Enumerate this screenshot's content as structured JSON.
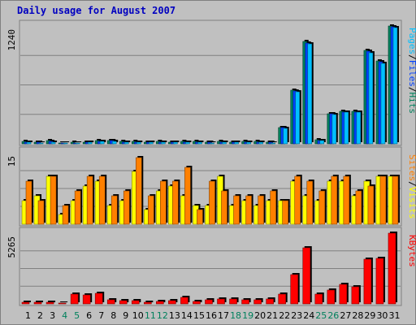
{
  "chart_data": {
    "type": "bar",
    "title": "Daily usage for August 2007",
    "categories": [
      "1",
      "2",
      "3",
      "4",
      "5",
      "6",
      "7",
      "8",
      "9",
      "10",
      "11",
      "12",
      "13",
      "14",
      "15",
      "16",
      "17",
      "18",
      "19",
      "20",
      "21",
      "22",
      "23",
      "24",
      "25",
      "26",
      "27",
      "28",
      "29",
      "30",
      "31"
    ],
    "weekend_days": [
      "4",
      "5",
      "11",
      "12",
      "18",
      "19",
      "25",
      "26"
    ],
    "colors": {
      "title": "#0000c0",
      "hits": "#00805c",
      "files": "#0040ff",
      "pages": "#00c0ff",
      "visits": "#ffff00",
      "sites": "#ff8000",
      "kbytes": "#ff0000",
      "weekday_label": "#000000",
      "weekend_label": "#00805c",
      "background": "#c0c0c0"
    },
    "panels": [
      {
        "id": "hits",
        "ymax": 1240,
        "ymax_label": "1240",
        "side_label": [
          "Pages",
          "Files",
          "Hits"
        ],
        "series": [
          {
            "name": "Hits",
            "values": [
              22,
              18,
              30,
              12,
              15,
              20,
              32,
              38,
              26,
              24,
              20,
              24,
              20,
              22,
              24,
              18,
              22,
              20,
              22,
              22,
              18,
              175,
              565,
              1075,
              45,
              320,
              340,
              340,
              985,
              870,
              1240
            ]
          },
          {
            "name": "Files",
            "values": [
              18,
              14,
              24,
              10,
              12,
              16,
              26,
              30,
              20,
              20,
              16,
              20,
              16,
              18,
              20,
              14,
              18,
              16,
              18,
              18,
              14,
              170,
              555,
              1060,
              38,
              315,
              335,
              335,
              975,
              860,
              1235
            ]
          },
          {
            "name": "Pages",
            "values": [
              14,
              12,
              20,
              8,
              10,
              14,
              22,
              26,
              18,
              16,
              14,
              16,
              14,
              15,
              16,
              12,
              14,
              13,
              15,
              15,
              12,
              165,
              545,
              1050,
              32,
              310,
              330,
              330,
              960,
              850,
              1225
            ]
          }
        ]
      },
      {
        "id": "visits",
        "ymax": 15,
        "ymax_label": "15",
        "side_label": [
          "Sites",
          "Visits"
        ],
        "series": [
          {
            "name": "Visits",
            "values": [
              5,
              6,
              10,
              2,
              5,
              8,
              9,
              4,
              5,
              11,
              3,
              7,
              8,
              6,
              4,
              4,
              10,
              4,
              5,
              4,
              5,
              5,
              9,
              6,
              5,
              9,
              9,
              6,
              9,
              10,
              10
            ]
          },
          {
            "name": "Sites",
            "values": [
              9,
              5,
              10,
              4,
              7,
              10,
              10,
              6,
              7,
              14,
              6,
              9,
              9,
              12,
              3,
              9,
              7,
              6,
              6,
              6,
              7,
              5,
              10,
              9,
              7,
              10,
              10,
              7,
              8,
              10,
              10
            ]
          }
        ]
      },
      {
        "id": "kbytes",
        "ymax": 5265,
        "ymax_label": "5265",
        "side_label": [
          "KBytes"
        ],
        "series": [
          {
            "name": "KBytes",
            "values": [
              140,
              150,
              140,
              60,
              700,
              690,
              790,
              280,
              240,
              250,
              150,
              170,
              260,
              470,
              200,
              290,
              350,
              360,
              330,
              320,
              340,
              710,
              2200,
              4200,
              700,
              1050,
              1450,
              1250,
              3300,
              3400,
              5265
            ]
          }
        ]
      }
    ]
  }
}
